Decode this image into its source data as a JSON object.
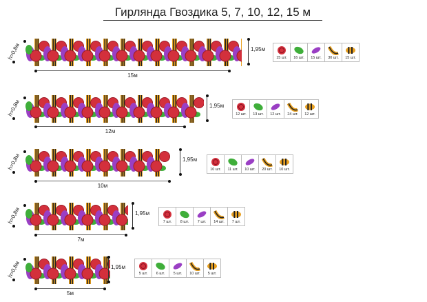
{
  "title": "Гирлянда Гвоздика 5, 7, 10, 12, 15 м",
  "colors": {
    "rose": "#d3303c",
    "leaf": "#3fae3a",
    "lilac": "#9a3fc4",
    "ribbon_orange": "#e8a020",
    "ribbon_black": "#222222"
  },
  "parts_icons": [
    "rose-icon",
    "leaf-icon",
    "lilac-icon",
    "ribbon-icon",
    "ribbon-roll-icon"
  ],
  "garlands": [
    {
      "height_label": "h=0,8м",
      "depth_label": "1,95м",
      "length_label": "15м",
      "counts": [
        "15 шт.",
        "16 шт.",
        "15 шт.",
        "30 шт.",
        "15 шт."
      ]
    },
    {
      "height_label": "h=0,8м",
      "depth_label": "1,95м",
      "length_label": "12м",
      "counts": [
        "12 шт.",
        "13 шт.",
        "12 шт.",
        "24 шт.",
        "12 шт."
      ]
    },
    {
      "height_label": "h=0,8м",
      "depth_label": "1,95м",
      "length_label": "10м",
      "counts": [
        "10 шт.",
        "11 шт.",
        "10 шт.",
        "20 шт.",
        "10 шт."
      ]
    },
    {
      "height_label": "h=0,8м",
      "depth_label": "1,95м",
      "length_label": "7м",
      "counts": [
        "7 шт.",
        "8 шт.",
        "7 шт.",
        "14 шт.",
        "7 шт."
      ]
    },
    {
      "height_label": "h=0,8м",
      "depth_label": "1,95м",
      "length_label": "5м",
      "counts": [
        "5 шт.",
        "6 шт.",
        "5 шт.",
        "10 шт.",
        "5 шт."
      ]
    }
  ]
}
